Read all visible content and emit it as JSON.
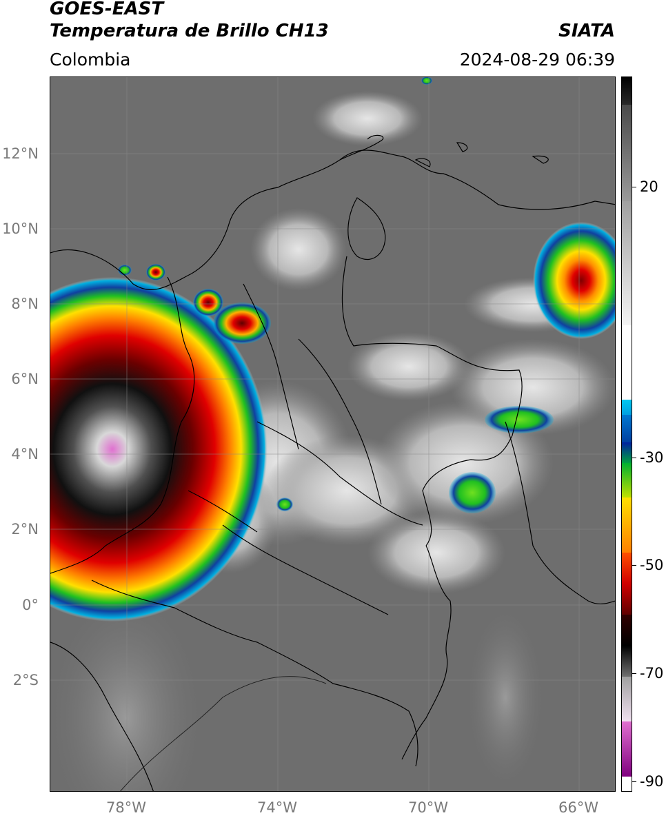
{
  "header": {
    "line1": "GOES-EAST",
    "line2": "Temperatura de Brillo CH13",
    "brand": "SIATA",
    "region": "Colombia",
    "timestamp": "2024-08-29 06:39"
  },
  "axes": {
    "lat_labels": [
      "12°N",
      "10°N",
      "8°N",
      "6°N",
      "4°N",
      "2°N",
      "0°",
      "2°S"
    ],
    "lon_labels": [
      "78°W",
      "74°W",
      "70°W",
      "66°W"
    ]
  },
  "colorbar": {
    "labels": [
      "20",
      "-30",
      "-50",
      "-70",
      "-90"
    ]
  },
  "colors": {
    "background_clear": "#6b6b6b",
    "border_lines": "#000000",
    "grid": "#8a8a8a"
  }
}
